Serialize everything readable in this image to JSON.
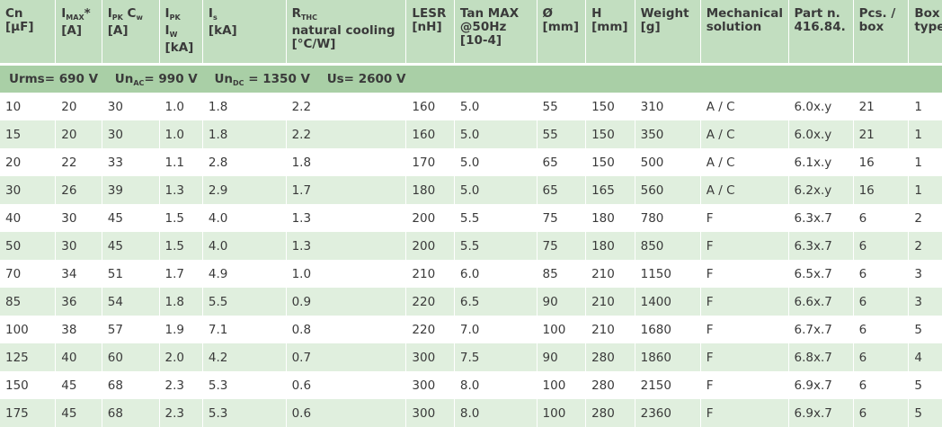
{
  "header": {
    "cn": {
      "main": "Cn",
      "unit": "[μF]"
    },
    "imax": {
      "main": "I",
      "sub": "MAX",
      "star": "*",
      "unit": "[A]"
    },
    "ipk_cw": {
      "main": "I",
      "sub": "PK",
      "main2": " C",
      "sub2": "w",
      "unit": "[A]"
    },
    "ipk_iw": {
      "main": "I",
      "sub": "PK",
      "line2": "I",
      "sub2": "W",
      "unit": "[kA]"
    },
    "is": {
      "main": "I",
      "sub": "s",
      "unit": "[kA]"
    },
    "rthc": {
      "main": "R",
      "sub": "THC",
      "line2": "natural cooling",
      "unit": "[°C/W]"
    },
    "lesr": {
      "main": "LESR",
      "unit": "[nH]"
    },
    "tan": {
      "main": "Tan MAX",
      "line2": "@50Hz",
      "unit": "[10-4]"
    },
    "diam": {
      "main": "Ø",
      "unit": "[mm]"
    },
    "h": {
      "main": "H",
      "unit": "[mm]"
    },
    "weight": {
      "main": "Weight",
      "unit": "[g]"
    },
    "mech": {
      "main": "Mechanical",
      "line2": "solution"
    },
    "part": {
      "main": "Part n.",
      "line2": "416.84."
    },
    "pcs": {
      "main": "Pcs. /",
      "line2": "box"
    },
    "box": {
      "main": "Box",
      "line2": "type"
    }
  },
  "voltage": {
    "urms": "Urms= 690 V",
    "unac_pre": "Un",
    "unac_sub": "AC",
    "unac_val": "= 990 V",
    "undc_pre": "Un",
    "undc_sub": "DC",
    "undc_val": " = 1350 V",
    "us": "Us= 2600 V"
  },
  "rows": [
    [
      "10",
      "20",
      "30",
      "1.0",
      "1.8",
      "2.2",
      "160",
      "5.0",
      "55",
      "150",
      "310",
      "A / C",
      "6.0x.y",
      "21",
      "1"
    ],
    [
      "15",
      "20",
      "30",
      "1.0",
      "1.8",
      "2.2",
      "160",
      "5.0",
      "55",
      "150",
      "350",
      "A / C",
      "6.0x.y",
      "21",
      "1"
    ],
    [
      "20",
      "22",
      "33",
      "1.1",
      "2.8",
      "1.8",
      "170",
      "5.0",
      "65",
      "150",
      "500",
      "A / C",
      "6.1x.y",
      "16",
      "1"
    ],
    [
      "30",
      "26",
      "39",
      "1.3",
      "2.9",
      "1.7",
      "180",
      "5.0",
      "65",
      "165",
      "560",
      "A / C",
      "6.2x.y",
      "16",
      "1"
    ],
    [
      "40",
      "30",
      "45",
      "1.5",
      "4.0",
      "1.3",
      "200",
      "5.5",
      "75",
      "180",
      "780",
      "F",
      "6.3x.7",
      "6",
      "2"
    ],
    [
      "50",
      "30",
      "45",
      "1.5",
      "4.0",
      "1.3",
      "200",
      "5.5",
      "75",
      "180",
      "850",
      "F",
      "6.3x.7",
      "6",
      "2"
    ],
    [
      "70",
      "34",
      "51",
      "1.7",
      "4.9",
      "1.0",
      "210",
      "6.0",
      "85",
      "210",
      "1150",
      "F",
      "6.5x.7",
      "6",
      "3"
    ],
    [
      "85",
      "36",
      "54",
      "1.8",
      "5.5",
      "0.9",
      "220",
      "6.5",
      "90",
      "210",
      "1400",
      "F",
      "6.6x.7",
      "6",
      "3"
    ],
    [
      "100",
      "38",
      "57",
      "1.9",
      "7.1",
      "0.8",
      "220",
      "7.0",
      "100",
      "210",
      "1680",
      "F",
      "6.7x.7",
      "6",
      "5"
    ],
    [
      "125",
      "40",
      "60",
      "2.0",
      "4.2",
      "0.7",
      "300",
      "7.5",
      "90",
      "280",
      "1860",
      "F",
      "6.8x.7",
      "6",
      "4"
    ],
    [
      "150",
      "45",
      "68",
      "2.3",
      "5.3",
      "0.6",
      "300",
      "8.0",
      "100",
      "280",
      "2150",
      "F",
      "6.9x.7",
      "6",
      "5"
    ],
    [
      "175",
      "45",
      "68",
      "2.3",
      "5.3",
      "0.6",
      "300",
      "8.0",
      "100",
      "280",
      "2360",
      "F",
      "6.9x.7",
      "6",
      "5"
    ]
  ]
}
